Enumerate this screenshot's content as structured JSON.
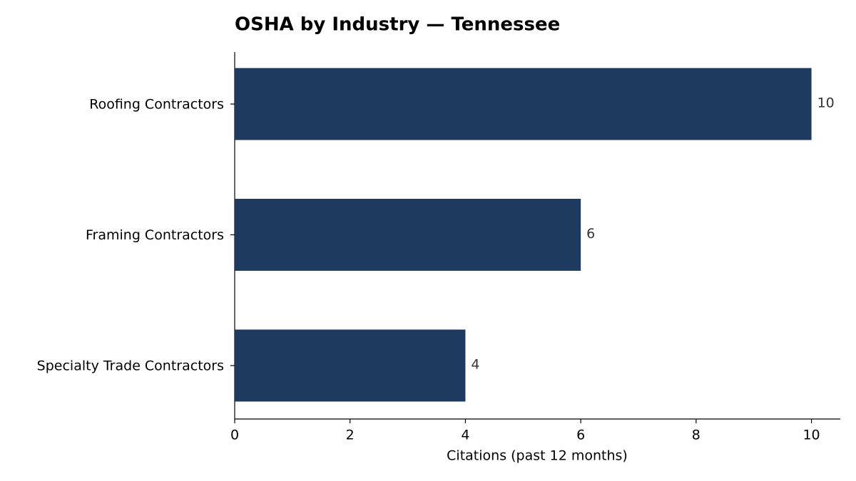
{
  "chart_data": {
    "type": "barh",
    "title": "OSHA by Industry — Tennessee",
    "xlabel": "Citations (past 12 months)",
    "categories": [
      "Roofing Contractors",
      "Framing Contractors",
      "Specialty Trade Contractors"
    ],
    "values": [
      10,
      6,
      4
    ],
    "color": "#1f3a5f",
    "xlim": [
      0,
      10.5
    ],
    "xticks": [
      0,
      2,
      4,
      6,
      8,
      10
    ],
    "grid": false
  }
}
